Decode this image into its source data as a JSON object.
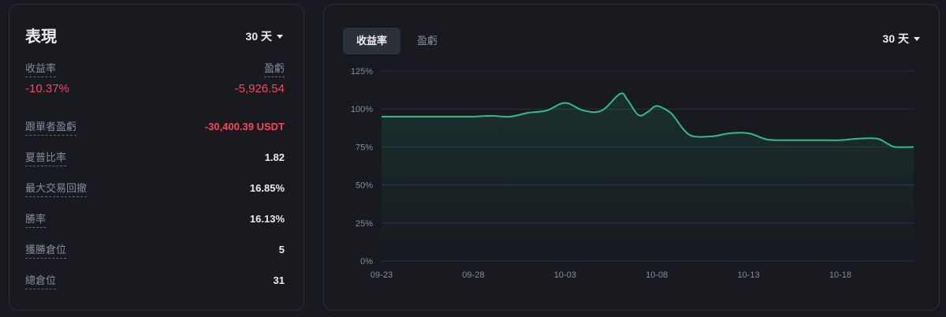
{
  "performance": {
    "title": "表現",
    "range_label": "30 天",
    "roi_label": "收益率",
    "roi_value": "-10.37%",
    "pnl_label": "盈虧",
    "pnl_value": "-5,926.54",
    "metrics": [
      {
        "label": "跟單者盈虧",
        "value": "-30,400.39 USDT",
        "negative": true
      },
      {
        "label": "夏普比率",
        "value": "1.82",
        "negative": false
      },
      {
        "label": "最大交易回撤",
        "value": "16.85%",
        "negative": false
      },
      {
        "label": "勝率",
        "value": "16.13%",
        "negative": false
      },
      {
        "label": "獲勝倉位",
        "value": "5",
        "negative": false
      },
      {
        "label": "總倉位",
        "value": "31",
        "negative": false
      }
    ]
  },
  "chart_panel": {
    "tabs": [
      {
        "label": "收益率",
        "active": true
      },
      {
        "label": "盈虧",
        "active": false
      }
    ],
    "range_label": "30 天"
  },
  "chart_data": {
    "type": "area",
    "y_ticks": [
      "0%",
      "25%",
      "50%",
      "75%",
      "100%",
      "125%"
    ],
    "x_ticks": [
      "09-23",
      "09-28",
      "10-03",
      "10-08",
      "10-13",
      "10-18"
    ],
    "ylim": [
      0,
      125
    ],
    "grid": true,
    "line_color": "#2ebd85",
    "x": [
      0,
      2,
      4,
      5,
      6,
      7,
      8,
      9,
      10,
      11,
      12,
      13,
      13.4,
      14,
      14.5,
      15,
      15.7,
      16,
      16.5,
      17,
      18,
      19,
      20,
      21,
      22,
      23,
      24,
      25,
      26,
      27,
      27.6,
      28,
      29
    ],
    "values": [
      95,
      95,
      95,
      95,
      95.5,
      95,
      97.5,
      99,
      104,
      99,
      99,
      110,
      106,
      96,
      98,
      102,
      98,
      94,
      86,
      82,
      82,
      84,
      84,
      80,
      79.5,
      79.5,
      79.5,
      79.5,
      80.5,
      80.5,
      77,
      75,
      75
    ]
  }
}
